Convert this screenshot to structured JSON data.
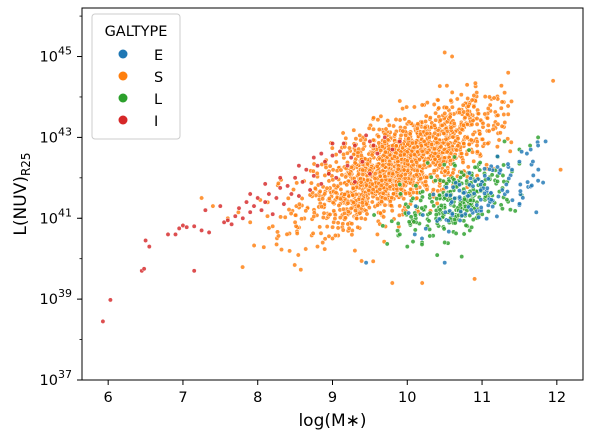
{
  "chart_data": {
    "type": "scatter",
    "xlabel": "log(M∗)",
    "ylabel_main": "L(NUV)",
    "ylabel_sub": "R25",
    "xlim": [
      5.65,
      12.35
    ],
    "ylim_log10": [
      37,
      46.2
    ],
    "y_scale": "log",
    "x_ticks": [
      6,
      7,
      8,
      9,
      10,
      11,
      12
    ],
    "y_ticks": [
      {
        "exp": 37,
        "base": "10",
        "sup": "37"
      },
      {
        "exp": 39,
        "base": "10",
        "sup": "39"
      },
      {
        "exp": 41,
        "base": "10",
        "sup": "41"
      },
      {
        "exp": 43,
        "base": "10",
        "sup": "43"
      },
      {
        "exp": 45,
        "base": "10",
        "sup": "45"
      }
    ],
    "grid": false,
    "legend": {
      "title": "GALTYPE",
      "position": "top-left",
      "entries": [
        {
          "label": "E",
          "color": "#1f77b4"
        },
        {
          "label": "S",
          "color": "#ff7f0e"
        },
        {
          "label": "L",
          "color": "#2ca02c"
        },
        {
          "label": "I",
          "color": "#d62728"
        }
      ]
    },
    "series": [
      {
        "name": "S",
        "color": "#ff7f0e",
        "cloud": {
          "x_mean": 9.9,
          "x_sd": 0.62,
          "y_intercept": 34.2,
          "y_slope": 0.82,
          "y_sd": 0.52,
          "x_min": 7.3,
          "x_max": 11.4,
          "count": 1700
        },
        "points": [
          [
            7.25,
            41.5
          ],
          [
            7.4,
            41.3
          ],
          [
            7.6,
            41.0
          ],
          [
            7.9,
            40.9
          ],
          [
            8.2,
            40.8
          ],
          [
            8.5,
            40.9
          ],
          [
            8.8,
            40.3
          ],
          [
            9.0,
            40.5
          ],
          [
            9.3,
            40.2
          ],
          [
            9.6,
            40.6
          ],
          [
            9.8,
            39.4
          ],
          [
            10.2,
            39.4
          ],
          [
            10.9,
            39.5
          ],
          [
            10.5,
            45.1
          ],
          [
            10.6,
            45.0
          ],
          [
            11.35,
            44.6
          ],
          [
            11.1,
            44.0
          ],
          [
            11.95,
            44.4
          ],
          [
            12.05,
            42.2
          ],
          [
            10.8,
            44.3
          ],
          [
            9.9,
            43.9
          ],
          [
            10.2,
            43.8
          ]
        ]
      },
      {
        "name": "L",
        "color": "#2ca02c",
        "cloud": {
          "x_mean": 10.7,
          "x_sd": 0.38,
          "y_intercept": 34.5,
          "y_slope": 0.65,
          "y_sd": 0.42,
          "x_min": 9.5,
          "x_max": 11.8,
          "count": 280
        },
        "points": [
          [
            10.0,
            40.3
          ],
          [
            10.5,
            40.4
          ],
          [
            11.75,
            43.0
          ],
          [
            11.5,
            42.7
          ],
          [
            11.3,
            42.9
          ],
          [
            9.9,
            40.6
          ]
        ]
      },
      {
        "name": "E",
        "color": "#1f77b4",
        "cloud": {
          "x_mean": 11.0,
          "x_sd": 0.4,
          "y_intercept": 34.8,
          "y_slope": 0.62,
          "y_sd": 0.38,
          "x_min": 10.0,
          "x_max": 11.85,
          "count": 110
        },
        "points": [
          [
            9.45,
            39.9
          ],
          [
            10.5,
            39.9
          ],
          [
            11.6,
            42.6
          ],
          [
            11.75,
            42.8
          ],
          [
            11.5,
            42.4
          ],
          [
            11.4,
            42.2
          ],
          [
            10.1,
            40.6
          ],
          [
            11.85,
            42.9
          ]
        ]
      },
      {
        "name": "I",
        "color": "#d62728",
        "points": [
          [
            5.93,
            38.45
          ],
          [
            6.03,
            38.98
          ],
          [
            6.45,
            39.7
          ],
          [
            6.48,
            39.75
          ],
          [
            6.5,
            40.45
          ],
          [
            6.55,
            40.3
          ],
          [
            6.8,
            40.6
          ],
          [
            6.9,
            40.6
          ],
          [
            6.95,
            40.75
          ],
          [
            7.0,
            40.82
          ],
          [
            7.05,
            40.78
          ],
          [
            7.15,
            39.7
          ],
          [
            7.15,
            40.8
          ],
          [
            7.25,
            40.7
          ],
          [
            7.3,
            41.2
          ],
          [
            7.35,
            40.65
          ],
          [
            7.5,
            41.3
          ],
          [
            7.55,
            40.9
          ],
          [
            7.6,
            40.95
          ],
          [
            7.65,
            40.85
          ],
          [
            7.7,
            41.05
          ],
          [
            7.75,
            41.25
          ],
          [
            7.8,
            41.0
          ],
          [
            7.85,
            41.4
          ],
          [
            7.9,
            41.15
          ],
          [
            7.95,
            41.3
          ],
          [
            8.0,
            41.5
          ],
          [
            8.05,
            41.2
          ],
          [
            8.1,
            41.4
          ],
          [
            8.15,
            41.6
          ],
          [
            8.2,
            41.1
          ],
          [
            8.25,
            41.5
          ],
          [
            8.3,
            41.75
          ],
          [
            8.35,
            41.35
          ],
          [
            8.4,
            41.8
          ],
          [
            8.45,
            41.6
          ],
          [
            8.5,
            42.0
          ],
          [
            8.55,
            41.55
          ],
          [
            8.6,
            41.9
          ],
          [
            8.65,
            42.2
          ],
          [
            8.7,
            41.7
          ],
          [
            8.75,
            42.05
          ],
          [
            8.8,
            42.3
          ],
          [
            8.85,
            41.85
          ],
          [
            8.9,
            42.4
          ],
          [
            8.95,
            42.1
          ],
          [
            9.0,
            42.55
          ],
          [
            9.05,
            42.0
          ],
          [
            9.1,
            42.65
          ],
          [
            9.2,
            42.3
          ],
          [
            9.3,
            42.8
          ],
          [
            9.4,
            42.4
          ],
          [
            9.5,
            42.9
          ],
          [
            9.6,
            42.6
          ],
          [
            9.7,
            43.0
          ],
          [
            9.3,
            41.9
          ],
          [
            9.5,
            42.1
          ],
          [
            8.85,
            42.6
          ],
          [
            9.15,
            42.85
          ],
          [
            9.45,
            43.05
          ],
          [
            7.9,
            41.6
          ],
          [
            8.1,
            41.85
          ],
          [
            8.3,
            42.0
          ],
          [
            8.55,
            42.3
          ],
          [
            8.75,
            42.5
          ],
          [
            9.0,
            42.85
          ],
          [
            9.25,
            42.5
          ],
          [
            9.55,
            42.8
          ],
          [
            9.8,
            42.7
          ],
          [
            9.9,
            42.9
          ]
        ]
      }
    ]
  }
}
